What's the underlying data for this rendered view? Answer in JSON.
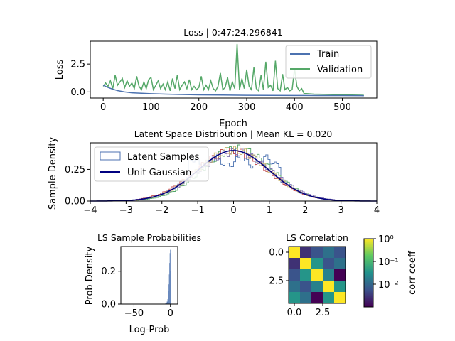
{
  "chart_data": [
    {
      "type": "line",
      "title": "Loss | 0:47:24.296841",
      "xlabel": "Epoch",
      "ylabel": "Loss",
      "xlim": [
        -27,
        572
      ],
      "ylim": [
        -0.55,
        4.55
      ],
      "xticks": [
        "0",
        "100",
        "200",
        "300",
        "400",
        "500"
      ],
      "yticks": [
        "0.0",
        "2.5"
      ],
      "legend": "top-right",
      "series": [
        {
          "name": "Train",
          "color": "#4c72b0",
          "x": [
            0,
            10,
            20,
            30,
            45,
            60,
            80,
            100,
            130,
            160,
            200,
            250,
            300,
            350,
            400,
            420,
            450,
            500,
            545
          ],
          "y": [
            0.6,
            0.4,
            0.25,
            0.12,
            0.0,
            -0.08,
            -0.12,
            -0.16,
            -0.2,
            -0.23,
            -0.26,
            -0.28,
            -0.3,
            -0.31,
            -0.32,
            -0.32,
            -0.33,
            -0.33,
            -0.34
          ]
        },
        {
          "name": "Validation",
          "color": "#55a868",
          "x": [
            0,
            5,
            10,
            15,
            20,
            25,
            30,
            35,
            40,
            45,
            50,
            55,
            60,
            65,
            70,
            75,
            80,
            85,
            90,
            95,
            100,
            105,
            110,
            115,
            120,
            125,
            130,
            135,
            140,
            145,
            150,
            155,
            160,
            165,
            170,
            175,
            180,
            185,
            190,
            195,
            200,
            205,
            210,
            215,
            220,
            225,
            230,
            235,
            240,
            245,
            250,
            255,
            260,
            265,
            270,
            275,
            280,
            285,
            290,
            295,
            300,
            305,
            310,
            315,
            320,
            325,
            330,
            335,
            340,
            345,
            350,
            355,
            360,
            365,
            370,
            375,
            380,
            385,
            390,
            395,
            400,
            405,
            410,
            415,
            420,
            425,
            440,
            460,
            480,
            500,
            520,
            545
          ],
          "y": [
            0.5,
            0.8,
            0.5,
            1.0,
            0.3,
            1.5,
            0.6,
            0.9,
            1.2,
            0.4,
            1.0,
            0.5,
            0.8,
            0.3,
            1.4,
            0.5,
            0.2,
            0.9,
            0.3,
            1.1,
            1.3,
            0.2,
            0.6,
            1.0,
            0.3,
            0.7,
            0.2,
            0.9,
            0.1,
            1.2,
            0.3,
            1.5,
            0.2,
            0.6,
            0.9,
            0.3,
            1.1,
            0.2,
            0.5,
            0.2,
            0.4,
            1.4,
            0.2,
            0.6,
            0.2,
            1.0,
            0.3,
            0.1,
            0.5,
            1.7,
            0.2,
            0.4,
            1.3,
            0.1,
            0.9,
            0.3,
            4.3,
            0.2,
            1.2,
            0.3,
            2.0,
            0.5,
            0.2,
            2.2,
            0.3,
            0.1,
            1.5,
            0.2,
            2.7,
            0.4,
            0.6,
            0.1,
            2.8,
            0.3,
            0.1,
            1.6,
            0.2,
            0.4,
            0.1,
            0.2,
            2.1,
            0.5,
            0.1,
            0.3,
            -0.15,
            -0.15,
            -0.2,
            -0.22,
            -0.25,
            -0.28,
            -0.28,
            -0.3
          ]
        }
      ]
    },
    {
      "type": "line",
      "title": "Latent Space Distribution | Mean KL = 0.020",
      "xlabel": "",
      "ylabel": "Sample Density",
      "xlim": [
        -4,
        4
      ],
      "ylim": [
        0,
        0.46
      ],
      "xticks": [
        "−4",
        "−3",
        "−2",
        "−1",
        "0",
        "1",
        "2",
        "3",
        "4"
      ],
      "yticks": [
        "0.00",
        "0.25"
      ],
      "legend": "top-left",
      "series": [
        {
          "name": "Latent Samples",
          "color": "#4c72b0"
        },
        {
          "name": "Unit Gaussian",
          "color": "#000080"
        }
      ],
      "sample_histograms": [
        {
          "color": "#4c72b0",
          "mean": 0.0,
          "std": 1.0,
          "plateau": true
        },
        {
          "color": "#55a868",
          "mean": 0.1,
          "std": 0.97
        },
        {
          "color": "#c44e52",
          "mean": -0.05,
          "std": 1.02
        },
        {
          "color": "#8172b2",
          "mean": 0.05,
          "std": 1.03
        },
        {
          "color": "#ccb974",
          "mean": 0.0,
          "std": 0.99
        }
      ]
    },
    {
      "type": "bar",
      "title": "LS Sample Probabilities",
      "xlabel": "Log-Prob",
      "ylabel": "Prob Density",
      "xlim": [
        -68,
        10
      ],
      "ylim": [
        0,
        0.35
      ],
      "xticks": [
        "−50",
        "0"
      ],
      "yticks": [
        "0.0",
        "0.2"
      ],
      "color": "#4c72b0",
      "bins": [
        -8,
        -7,
        -6,
        -5,
        -4,
        -3.5,
        -3,
        -2.5,
        -2,
        -1.5,
        -1,
        -0.5,
        0
      ],
      "values": [
        0.002,
        0.004,
        0.008,
        0.015,
        0.03,
        0.05,
        0.08,
        0.12,
        0.18,
        0.25,
        0.31,
        0.33,
        0.2
      ]
    },
    {
      "type": "heatmap",
      "title": "LS Correlation",
      "xticks": [
        "0.0",
        "2.5"
      ],
      "yticks": [
        "0.0",
        "2.5"
      ],
      "values": [
        [
          1.0,
          0.005,
          0.01,
          0.02,
          0.01
        ],
        [
          0.005,
          1.0,
          0.05,
          0.01,
          0.02
        ],
        [
          0.01,
          0.05,
          1.0,
          0.03,
          0.002
        ],
        [
          0.02,
          0.01,
          0.03,
          1.0,
          0.05
        ],
        [
          0.05,
          0.02,
          0.002,
          0.05,
          1.0
        ]
      ],
      "colorbar": {
        "label": "corr coeff",
        "scale": "log",
        "ticks": [
          "10⁰",
          "10⁻¹",
          "10⁻²"
        ]
      }
    }
  ]
}
